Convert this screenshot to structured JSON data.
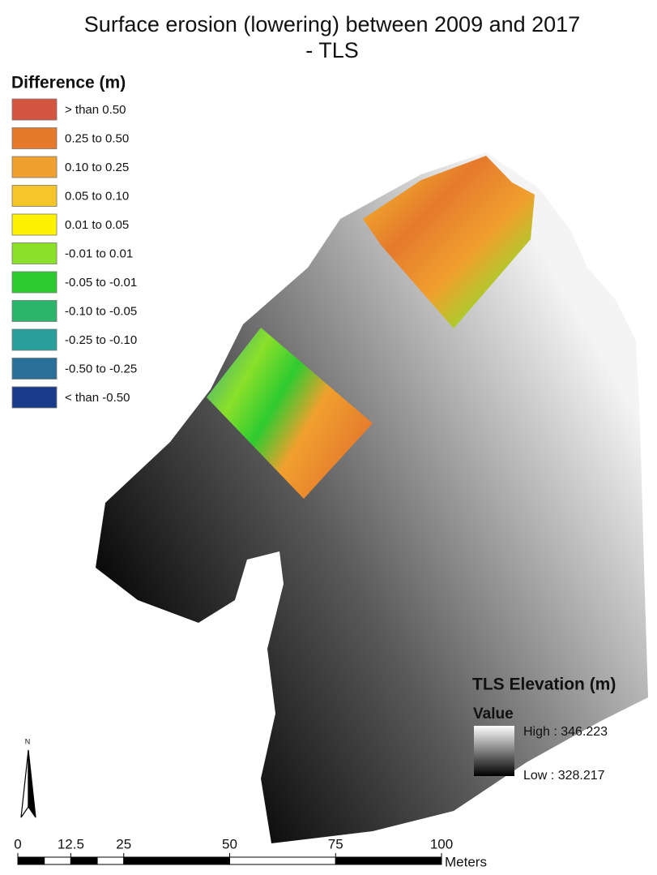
{
  "title_lines": [
    "Surface erosion (lowering) between 2009 and 2017",
    "- TLS"
  ],
  "difference_legend": {
    "title": "Difference (m)",
    "classes": [
      {
        "label": "> than 0.50",
        "color": "#d4553f"
      },
      {
        "label": "0.25 to 0.50",
        "color": "#e57a2d"
      },
      {
        "label": "0.10 to 0.25",
        "color": "#f0a02e"
      },
      {
        "label": "0.05 to 0.10",
        "color": "#f6c52a"
      },
      {
        "label": "0.01 to 0.05",
        "color": "#fff200"
      },
      {
        "label": "-0.01 to 0.01",
        "color": "#8be02a"
      },
      {
        "label": "-0.05 to -0.01",
        "color": "#2ecb30"
      },
      {
        "label": "-0.10 to -0.05",
        "color": "#2bb56b"
      },
      {
        "label": "-0.25 to -0.10",
        "color": "#2a9e9a"
      },
      {
        "label": "-0.50 to -0.25",
        "color": "#2a6f98"
      },
      {
        "label": "< than -0.50",
        "color": "#1a3a8a"
      }
    ]
  },
  "elevation_legend": {
    "title": "TLS Elevation (m)",
    "subtitle": "Value",
    "high": "High : 346.223",
    "low": "Low : 328.217"
  },
  "north_arrow": "N",
  "scale_bar": {
    "ticks": [
      0,
      12.5,
      25,
      50,
      75,
      100
    ],
    "unit": "Meters"
  }
}
